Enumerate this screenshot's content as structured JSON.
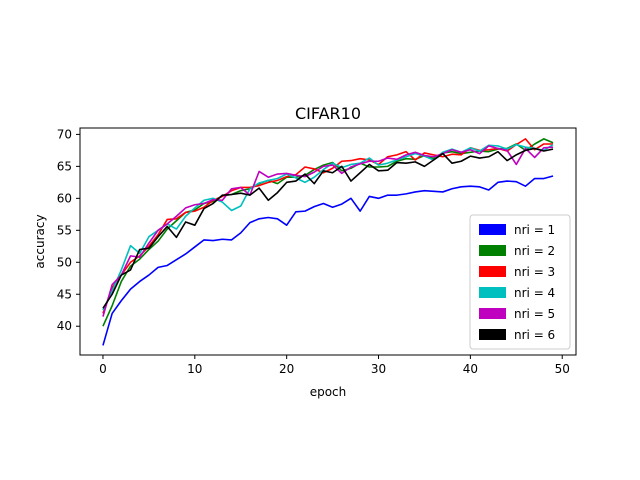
{
  "chart_data": {
    "type": "line",
    "title": "CIFAR10",
    "xlabel": "epoch",
    "ylabel": "accuracy",
    "xlim": [
      -2.5,
      51.5
    ],
    "ylim": [
      35.5,
      71.0
    ],
    "xticks": [
      0,
      10,
      20,
      30,
      40,
      50
    ],
    "yticks": [
      40,
      45,
      50,
      55,
      60,
      65,
      70
    ],
    "grid": false,
    "legend": "lower-right",
    "x": [
      0,
      1,
      2,
      3,
      4,
      5,
      6,
      7,
      8,
      9,
      10,
      11,
      12,
      13,
      14,
      15,
      16,
      17,
      18,
      19,
      20,
      21,
      22,
      23,
      24,
      25,
      26,
      27,
      28,
      29,
      30,
      31,
      32,
      33,
      34,
      35,
      36,
      37,
      38,
      39,
      40,
      41,
      42,
      43,
      44,
      45,
      46,
      47,
      48,
      49
    ],
    "series": [
      {
        "name": "nri = 1",
        "color": "#0000ff",
        "values": [
          37.0,
          42.0,
          44.0,
          45.8,
          47.0,
          48.0,
          49.2,
          49.5,
          50.4,
          51.3,
          52.4,
          53.5,
          53.4,
          53.6,
          53.5,
          54.6,
          56.2,
          56.8,
          57.0,
          56.8,
          55.8,
          57.9,
          58.0,
          58.7,
          59.2,
          58.6,
          59.1,
          60.0,
          58.0,
          60.3,
          60.0,
          60.5,
          60.5,
          60.7,
          61.0,
          61.2,
          61.1,
          61.0,
          61.5,
          61.8,
          61.9,
          61.8,
          61.3,
          62.5,
          62.7,
          62.6,
          61.9,
          63.1,
          63.1,
          63.5
        ]
      },
      {
        "name": "nri = 2",
        "color": "#008000",
        "values": [
          40.0,
          43.2,
          47.0,
          49.4,
          50.5,
          52.0,
          53.3,
          55.2,
          56.5,
          57.8,
          58.2,
          59.2,
          59.5,
          60.4,
          60.6,
          61.2,
          61.5,
          62.3,
          62.8,
          62.3,
          63.3,
          63.3,
          63.6,
          64.5,
          65.2,
          65.6,
          64.3,
          64.7,
          65.5,
          64.9,
          64.9,
          65.0,
          65.8,
          66.2,
          66.1,
          66.7,
          66.2,
          67.1,
          67.3,
          67.0,
          67.2,
          67.4,
          67.3,
          67.7,
          67.8,
          68.5,
          67.5,
          68.5,
          69.3,
          68.7
        ]
      },
      {
        "name": "nri = 3",
        "color": "#ff0000",
        "values": [
          42.0,
          46.0,
          48.0,
          50.0,
          51.0,
          52.5,
          54.3,
          56.7,
          56.8,
          57.8,
          58.0,
          58.6,
          59.7,
          60.3,
          61.2,
          61.7,
          61.7,
          62.0,
          62.5,
          62.8,
          63.4,
          63.7,
          64.9,
          64.6,
          64.0,
          64.7,
          65.8,
          65.9,
          66.2,
          66.0,
          65.3,
          66.5,
          66.8,
          67.3,
          66.0,
          67.1,
          66.8,
          66.5,
          66.9,
          66.8,
          67.9,
          67.5,
          67.6,
          67.8,
          67.4,
          68.4,
          69.3,
          67.6,
          68.5,
          68.5
        ]
      },
      {
        "name": "nri = 4",
        "color": "#00bfbf",
        "values": [
          42.5,
          45.5,
          48.8,
          52.6,
          51.4,
          54.0,
          55.0,
          56.0,
          55.2,
          57.2,
          58.5,
          59.7,
          60.0,
          59.4,
          58.1,
          58.8,
          61.5,
          62.4,
          62.8,
          63.1,
          63.8,
          63.2,
          62.5,
          63.3,
          64.5,
          65.5,
          64.8,
          65.3,
          65.5,
          66.3,
          65.2,
          65.5,
          66.0,
          66.5,
          67.0,
          66.6,
          66.0,
          67.2,
          67.7,
          67.2,
          67.9,
          67.4,
          68.3,
          68.2,
          67.7,
          68.4,
          68.0,
          67.8,
          67.5,
          68.4
        ]
      },
      {
        "name": "nri = 5",
        "color": "#bf00bf",
        "values": [
          41.5,
          46.5,
          48.0,
          51.0,
          50.8,
          53.0,
          55.0,
          56.0,
          57.2,
          58.5,
          59.0,
          59.2,
          59.8,
          59.7,
          61.5,
          61.7,
          60.5,
          64.2,
          63.3,
          63.8,
          63.9,
          63.6,
          63.4,
          64.1,
          65.0,
          65.2,
          63.9,
          64.9,
          65.4,
          65.8,
          65.8,
          66.3,
          66.1,
          66.8,
          67.2,
          66.7,
          66.5,
          67.0,
          67.6,
          67.2,
          67.6,
          67.0,
          68.2,
          67.8,
          67.5,
          65.3,
          67.8,
          66.4,
          67.9,
          68.0
        ]
      },
      {
        "name": "nri = 6",
        "color": "#000000",
        "values": [
          42.8,
          45.0,
          48.0,
          48.8,
          52.0,
          52.2,
          54.0,
          55.6,
          53.9,
          56.3,
          55.8,
          58.4,
          59.2,
          60.5,
          60.6,
          60.8,
          60.5,
          61.6,
          59.7,
          60.9,
          62.5,
          62.7,
          63.8,
          62.3,
          64.3,
          64.0,
          65.0,
          62.7,
          64.0,
          65.3,
          64.3,
          64.4,
          65.6,
          65.5,
          65.7,
          65.0,
          66.0,
          67.0,
          65.5,
          65.8,
          66.6,
          66.3,
          66.5,
          67.3,
          65.9,
          66.8,
          67.5,
          67.8,
          67.4,
          67.7
        ]
      }
    ]
  }
}
